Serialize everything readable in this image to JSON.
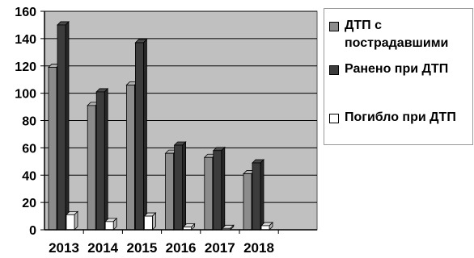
{
  "chart_data": {
    "type": "bar",
    "categories": [
      "2013",
      "2014",
      "2015",
      "2016",
      "2017",
      "2018"
    ],
    "series": [
      {
        "name": "ДТП с пострадавшими",
        "values": [
          119,
          91,
          106,
          56,
          53,
          41
        ],
        "color": "#8c8c8c"
      },
      {
        "name": "Ранено при ДТП",
        "values": [
          150,
          101,
          137,
          62,
          58,
          49
        ],
        "color": "#3c3c3c"
      },
      {
        "name": "Погибло при ДТП",
        "values": [
          11,
          6,
          10,
          2,
          1,
          3
        ],
        "color": "#ffffff"
      }
    ],
    "y_ticks": [
      "0",
      "20",
      "40",
      "60",
      "80",
      "100",
      "120",
      "140",
      "160"
    ],
    "ylim": [
      0,
      160
    ],
    "grid": true,
    "plot_background": "#c0c0c0",
    "legend_position": "right"
  }
}
